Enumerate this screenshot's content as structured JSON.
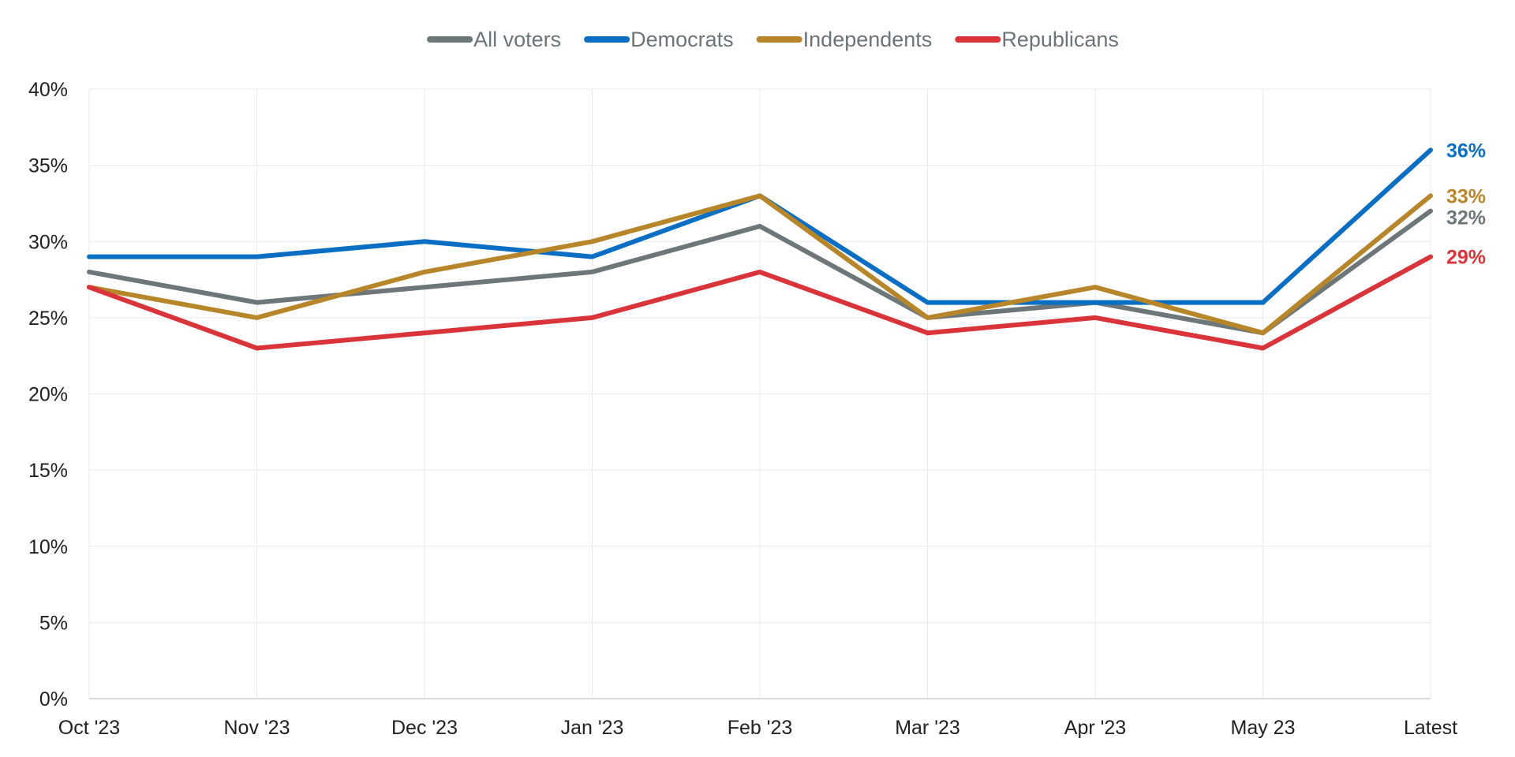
{
  "chart_data": {
    "type": "line",
    "title": "",
    "xlabel": "",
    "ylabel": "",
    "categories": [
      "Oct '23",
      "Nov '23",
      "Dec '23",
      "Jan '23",
      "Feb '23",
      "Mar '23",
      "Apr '23",
      "May 23",
      "Latest"
    ],
    "ylim": [
      0,
      40
    ],
    "yticks": [
      0,
      5,
      10,
      15,
      20,
      25,
      30,
      35,
      40
    ],
    "ytick_labels": [
      "0%",
      "5%",
      "10%",
      "15%",
      "20%",
      "25%",
      "30%",
      "35%",
      "40%"
    ],
    "grid": true,
    "legend_position": "top-center",
    "series": [
      {
        "name": "All voters",
        "color": "#6d7678",
        "values": [
          28,
          26,
          27,
          28,
          31,
          25,
          26,
          24,
          32
        ],
        "end_label": "32%"
      },
      {
        "name": "Democrats",
        "color": "#0a6fc2",
        "values": [
          29,
          29,
          30,
          29,
          33,
          26,
          26,
          26,
          36
        ],
        "end_label": "36%"
      },
      {
        "name": "Independents",
        "color": "#b8862a",
        "values": [
          27,
          25,
          28,
          30,
          33,
          25,
          27,
          24,
          33
        ],
        "end_label": "33%"
      },
      {
        "name": "Republicans",
        "color": "#d9343a",
        "values": [
          27,
          23,
          24,
          25,
          28,
          24,
          25,
          23,
          29
        ],
        "end_label": "29%"
      }
    ]
  }
}
